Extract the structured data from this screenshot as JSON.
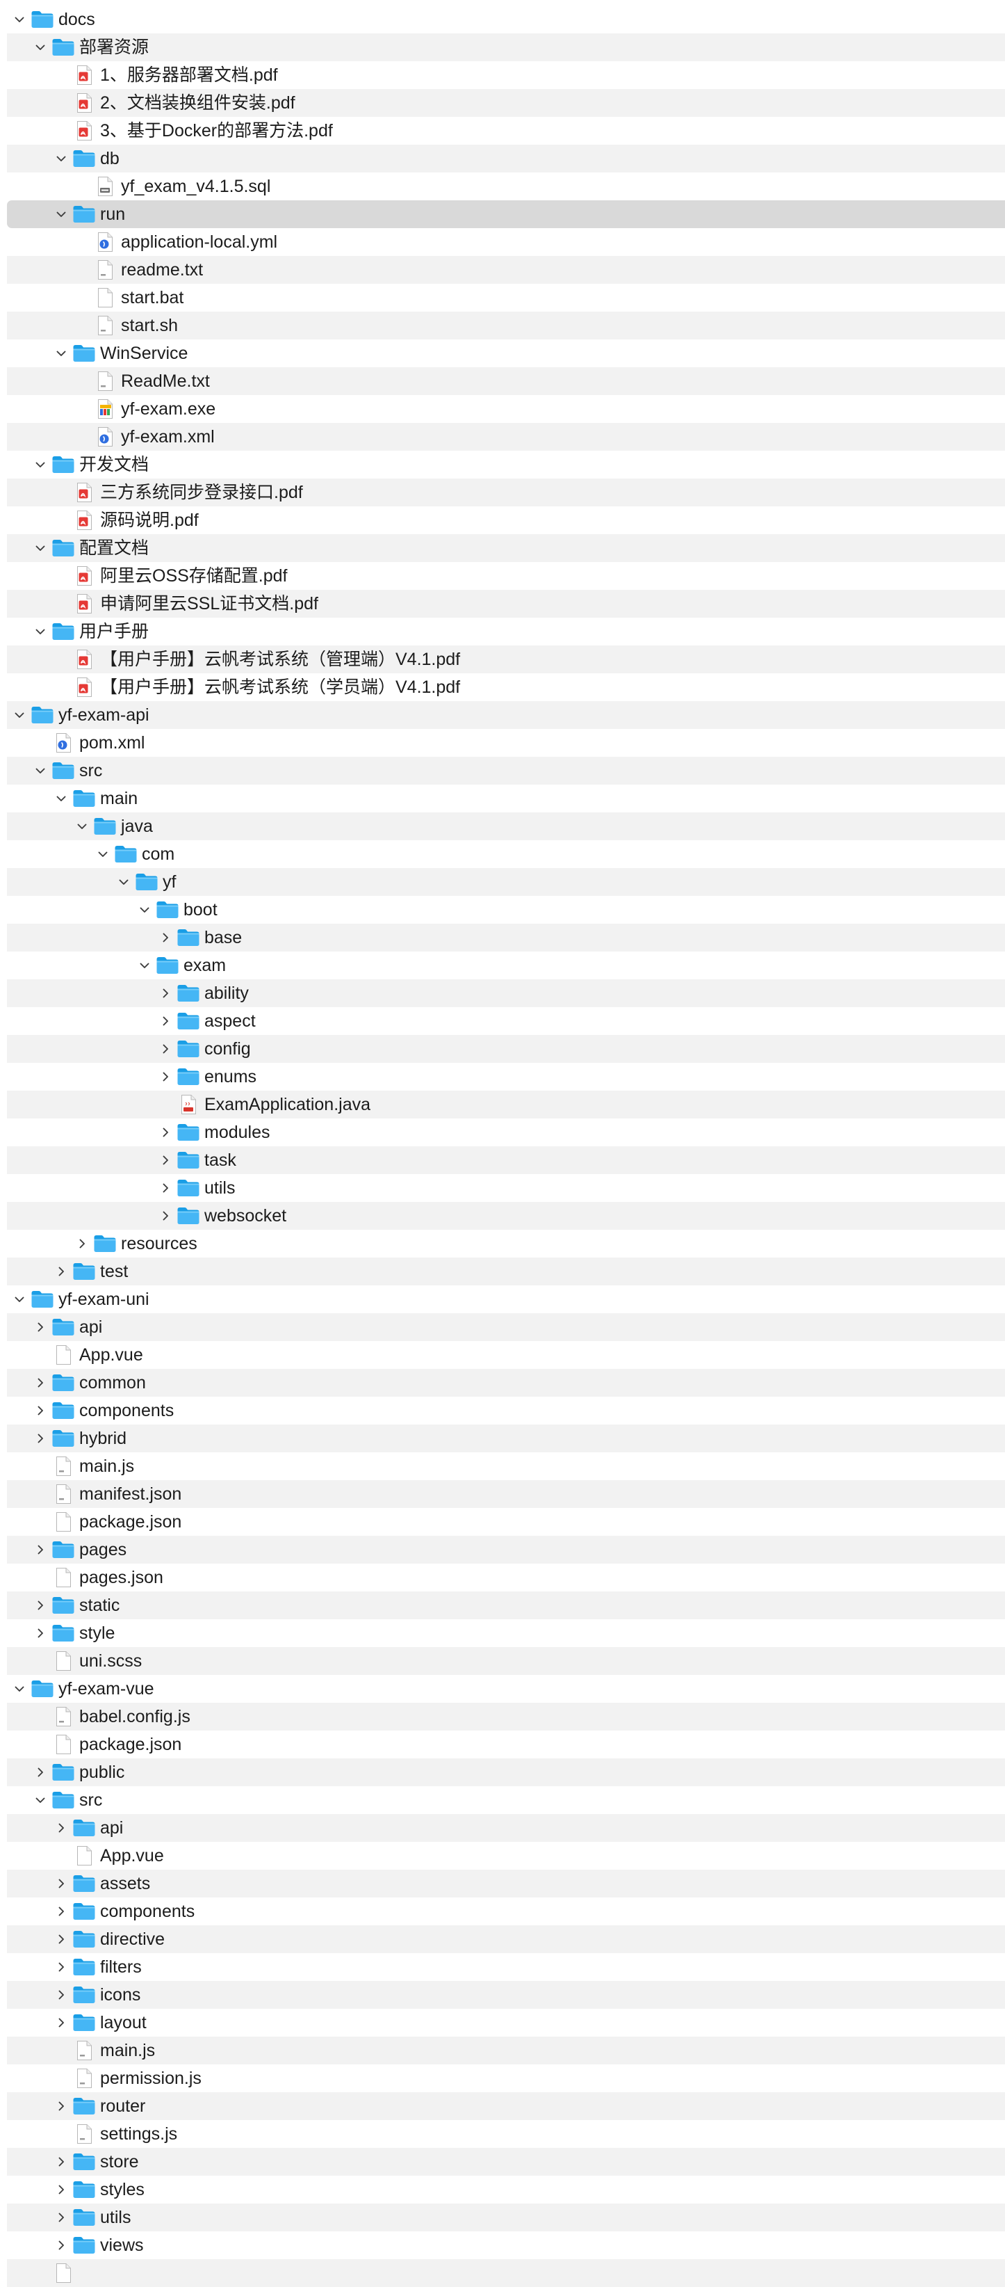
{
  "window": {
    "title": ""
  },
  "tree": [
    {
      "depth": 0,
      "label": "docs",
      "kind": "folder",
      "expand": "open"
    },
    {
      "depth": 1,
      "label": "部署资源",
      "kind": "folder",
      "expand": "open"
    },
    {
      "depth": 2,
      "label": "1、服务器部署文档.pdf",
      "kind": "pdf",
      "expand": "none"
    },
    {
      "depth": 2,
      "label": "2、文档装换组件安装.pdf",
      "kind": "pdf",
      "expand": "none"
    },
    {
      "depth": 2,
      "label": "3、基于Docker的部署方法.pdf",
      "kind": "pdf",
      "expand": "none"
    },
    {
      "depth": 2,
      "label": "db",
      "kind": "folder",
      "expand": "open"
    },
    {
      "depth": 3,
      "label": "yf_exam_v4.1.5.sql",
      "kind": "sql",
      "expand": "none"
    },
    {
      "depth": 2,
      "label": "run",
      "kind": "folder",
      "expand": "open",
      "selected": true
    },
    {
      "depth": 3,
      "label": "application-local.yml",
      "kind": "yml",
      "expand": "none"
    },
    {
      "depth": 3,
      "label": "readme.txt",
      "kind": "txt",
      "expand": "none"
    },
    {
      "depth": 3,
      "label": "start.bat",
      "kind": "blank",
      "expand": "none"
    },
    {
      "depth": 3,
      "label": "start.sh",
      "kind": "txt",
      "expand": "none"
    },
    {
      "depth": 2,
      "label": "WinService",
      "kind": "folder",
      "expand": "open"
    },
    {
      "depth": 3,
      "label": "ReadMe.txt",
      "kind": "txt",
      "expand": "none"
    },
    {
      "depth": 3,
      "label": "yf-exam.exe",
      "kind": "exe",
      "expand": "none"
    },
    {
      "depth": 3,
      "label": "yf-exam.xml",
      "kind": "xml",
      "expand": "none"
    },
    {
      "depth": 1,
      "label": "开发文档",
      "kind": "folder",
      "expand": "open"
    },
    {
      "depth": 2,
      "label": "三方系统同步登录接口.pdf",
      "kind": "pdf",
      "expand": "none"
    },
    {
      "depth": 2,
      "label": "源码说明.pdf",
      "kind": "pdf",
      "expand": "none"
    },
    {
      "depth": 1,
      "label": "配置文档",
      "kind": "folder",
      "expand": "open"
    },
    {
      "depth": 2,
      "label": "阿里云OSS存储配置.pdf",
      "kind": "pdf",
      "expand": "none"
    },
    {
      "depth": 2,
      "label": "申请阿里云SSL证书文档.pdf",
      "kind": "pdf",
      "expand": "none"
    },
    {
      "depth": 1,
      "label": "用户手册",
      "kind": "folder",
      "expand": "open"
    },
    {
      "depth": 2,
      "label": "【用户手册】云帆考试系统（管理端）V4.1.pdf",
      "kind": "pdf",
      "expand": "none"
    },
    {
      "depth": 2,
      "label": "【用户手册】云帆考试系统（学员端）V4.1.pdf",
      "kind": "pdf",
      "expand": "none"
    },
    {
      "depth": 0,
      "label": "yf-exam-api",
      "kind": "folder",
      "expand": "open"
    },
    {
      "depth": 1,
      "label": "pom.xml",
      "kind": "xml",
      "expand": "none"
    },
    {
      "depth": 1,
      "label": "src",
      "kind": "folder",
      "expand": "open"
    },
    {
      "depth": 2,
      "label": "main",
      "kind": "folder",
      "expand": "open"
    },
    {
      "depth": 3,
      "label": "java",
      "kind": "folder",
      "expand": "open"
    },
    {
      "depth": 4,
      "label": "com",
      "kind": "folder",
      "expand": "open"
    },
    {
      "depth": 5,
      "label": "yf",
      "kind": "folder",
      "expand": "open"
    },
    {
      "depth": 6,
      "label": "boot",
      "kind": "folder",
      "expand": "open"
    },
    {
      "depth": 7,
      "label": "base",
      "kind": "folder",
      "expand": "closed"
    },
    {
      "depth": 6,
      "label": "exam",
      "kind": "folder",
      "expand": "open"
    },
    {
      "depth": 7,
      "label": "ability",
      "kind": "folder",
      "expand": "closed"
    },
    {
      "depth": 7,
      "label": "aspect",
      "kind": "folder",
      "expand": "closed"
    },
    {
      "depth": 7,
      "label": "config",
      "kind": "folder",
      "expand": "closed"
    },
    {
      "depth": 7,
      "label": "enums",
      "kind": "folder",
      "expand": "closed"
    },
    {
      "depth": 7,
      "label": "ExamApplication.java",
      "kind": "java",
      "expand": "none"
    },
    {
      "depth": 7,
      "label": "modules",
      "kind": "folder",
      "expand": "closed"
    },
    {
      "depth": 7,
      "label": "task",
      "kind": "folder",
      "expand": "closed"
    },
    {
      "depth": 7,
      "label": "utils",
      "kind": "folder",
      "expand": "closed"
    },
    {
      "depth": 7,
      "label": "websocket",
      "kind": "folder",
      "expand": "closed"
    },
    {
      "depth": 3,
      "label": "resources",
      "kind": "folder",
      "expand": "closed"
    },
    {
      "depth": 2,
      "label": "test",
      "kind": "folder",
      "expand": "closed"
    },
    {
      "depth": 0,
      "label": "yf-exam-uni",
      "kind": "folder",
      "expand": "open"
    },
    {
      "depth": 1,
      "label": "api",
      "kind": "folder",
      "expand": "closed"
    },
    {
      "depth": 1,
      "label": "App.vue",
      "kind": "blank",
      "expand": "none"
    },
    {
      "depth": 1,
      "label": "common",
      "kind": "folder",
      "expand": "closed"
    },
    {
      "depth": 1,
      "label": "components",
      "kind": "folder",
      "expand": "closed"
    },
    {
      "depth": 1,
      "label": "hybrid",
      "kind": "folder",
      "expand": "closed"
    },
    {
      "depth": 1,
      "label": "main.js",
      "kind": "js",
      "expand": "none"
    },
    {
      "depth": 1,
      "label": "manifest.json",
      "kind": "json",
      "expand": "none"
    },
    {
      "depth": 1,
      "label": "package.json",
      "kind": "blank",
      "expand": "none"
    },
    {
      "depth": 1,
      "label": "pages",
      "kind": "folder",
      "expand": "closed"
    },
    {
      "depth": 1,
      "label": "pages.json",
      "kind": "blank",
      "expand": "none"
    },
    {
      "depth": 1,
      "label": "static",
      "kind": "folder",
      "expand": "closed"
    },
    {
      "depth": 1,
      "label": "style",
      "kind": "folder",
      "expand": "closed"
    },
    {
      "depth": 1,
      "label": "uni.scss",
      "kind": "blank",
      "expand": "none"
    },
    {
      "depth": 0,
      "label": "yf-exam-vue",
      "kind": "folder",
      "expand": "open"
    },
    {
      "depth": 1,
      "label": "babel.config.js",
      "kind": "js",
      "expand": "none"
    },
    {
      "depth": 1,
      "label": "package.json",
      "kind": "blank",
      "expand": "none"
    },
    {
      "depth": 1,
      "label": "public",
      "kind": "folder",
      "expand": "closed"
    },
    {
      "depth": 1,
      "label": "src",
      "kind": "folder",
      "expand": "open"
    },
    {
      "depth": 2,
      "label": "api",
      "kind": "folder",
      "expand": "closed"
    },
    {
      "depth": 2,
      "label": "App.vue",
      "kind": "blank",
      "expand": "none"
    },
    {
      "depth": 2,
      "label": "assets",
      "kind": "folder",
      "expand": "closed"
    },
    {
      "depth": 2,
      "label": "components",
      "kind": "folder",
      "expand": "closed"
    },
    {
      "depth": 2,
      "label": "directive",
      "kind": "folder",
      "expand": "closed"
    },
    {
      "depth": 2,
      "label": "filters",
      "kind": "folder",
      "expand": "closed"
    },
    {
      "depth": 2,
      "label": "icons",
      "kind": "folder",
      "expand": "closed"
    },
    {
      "depth": 2,
      "label": "layout",
      "kind": "folder",
      "expand": "closed"
    },
    {
      "depth": 2,
      "label": "main.js",
      "kind": "js",
      "expand": "none"
    },
    {
      "depth": 2,
      "label": "permission.js",
      "kind": "js",
      "expand": "none"
    },
    {
      "depth": 2,
      "label": "router",
      "kind": "folder",
      "expand": "closed"
    },
    {
      "depth": 2,
      "label": "settings.js",
      "kind": "js",
      "expand": "none"
    },
    {
      "depth": 2,
      "label": "store",
      "kind": "folder",
      "expand": "closed"
    },
    {
      "depth": 2,
      "label": "styles",
      "kind": "folder",
      "expand": "closed"
    },
    {
      "depth": 2,
      "label": "utils",
      "kind": "folder",
      "expand": "closed"
    },
    {
      "depth": 2,
      "label": "views",
      "kind": "folder",
      "expand": "closed"
    },
    {
      "depth": 1,
      "label": "",
      "kind": "blank",
      "expand": "none"
    }
  ]
}
